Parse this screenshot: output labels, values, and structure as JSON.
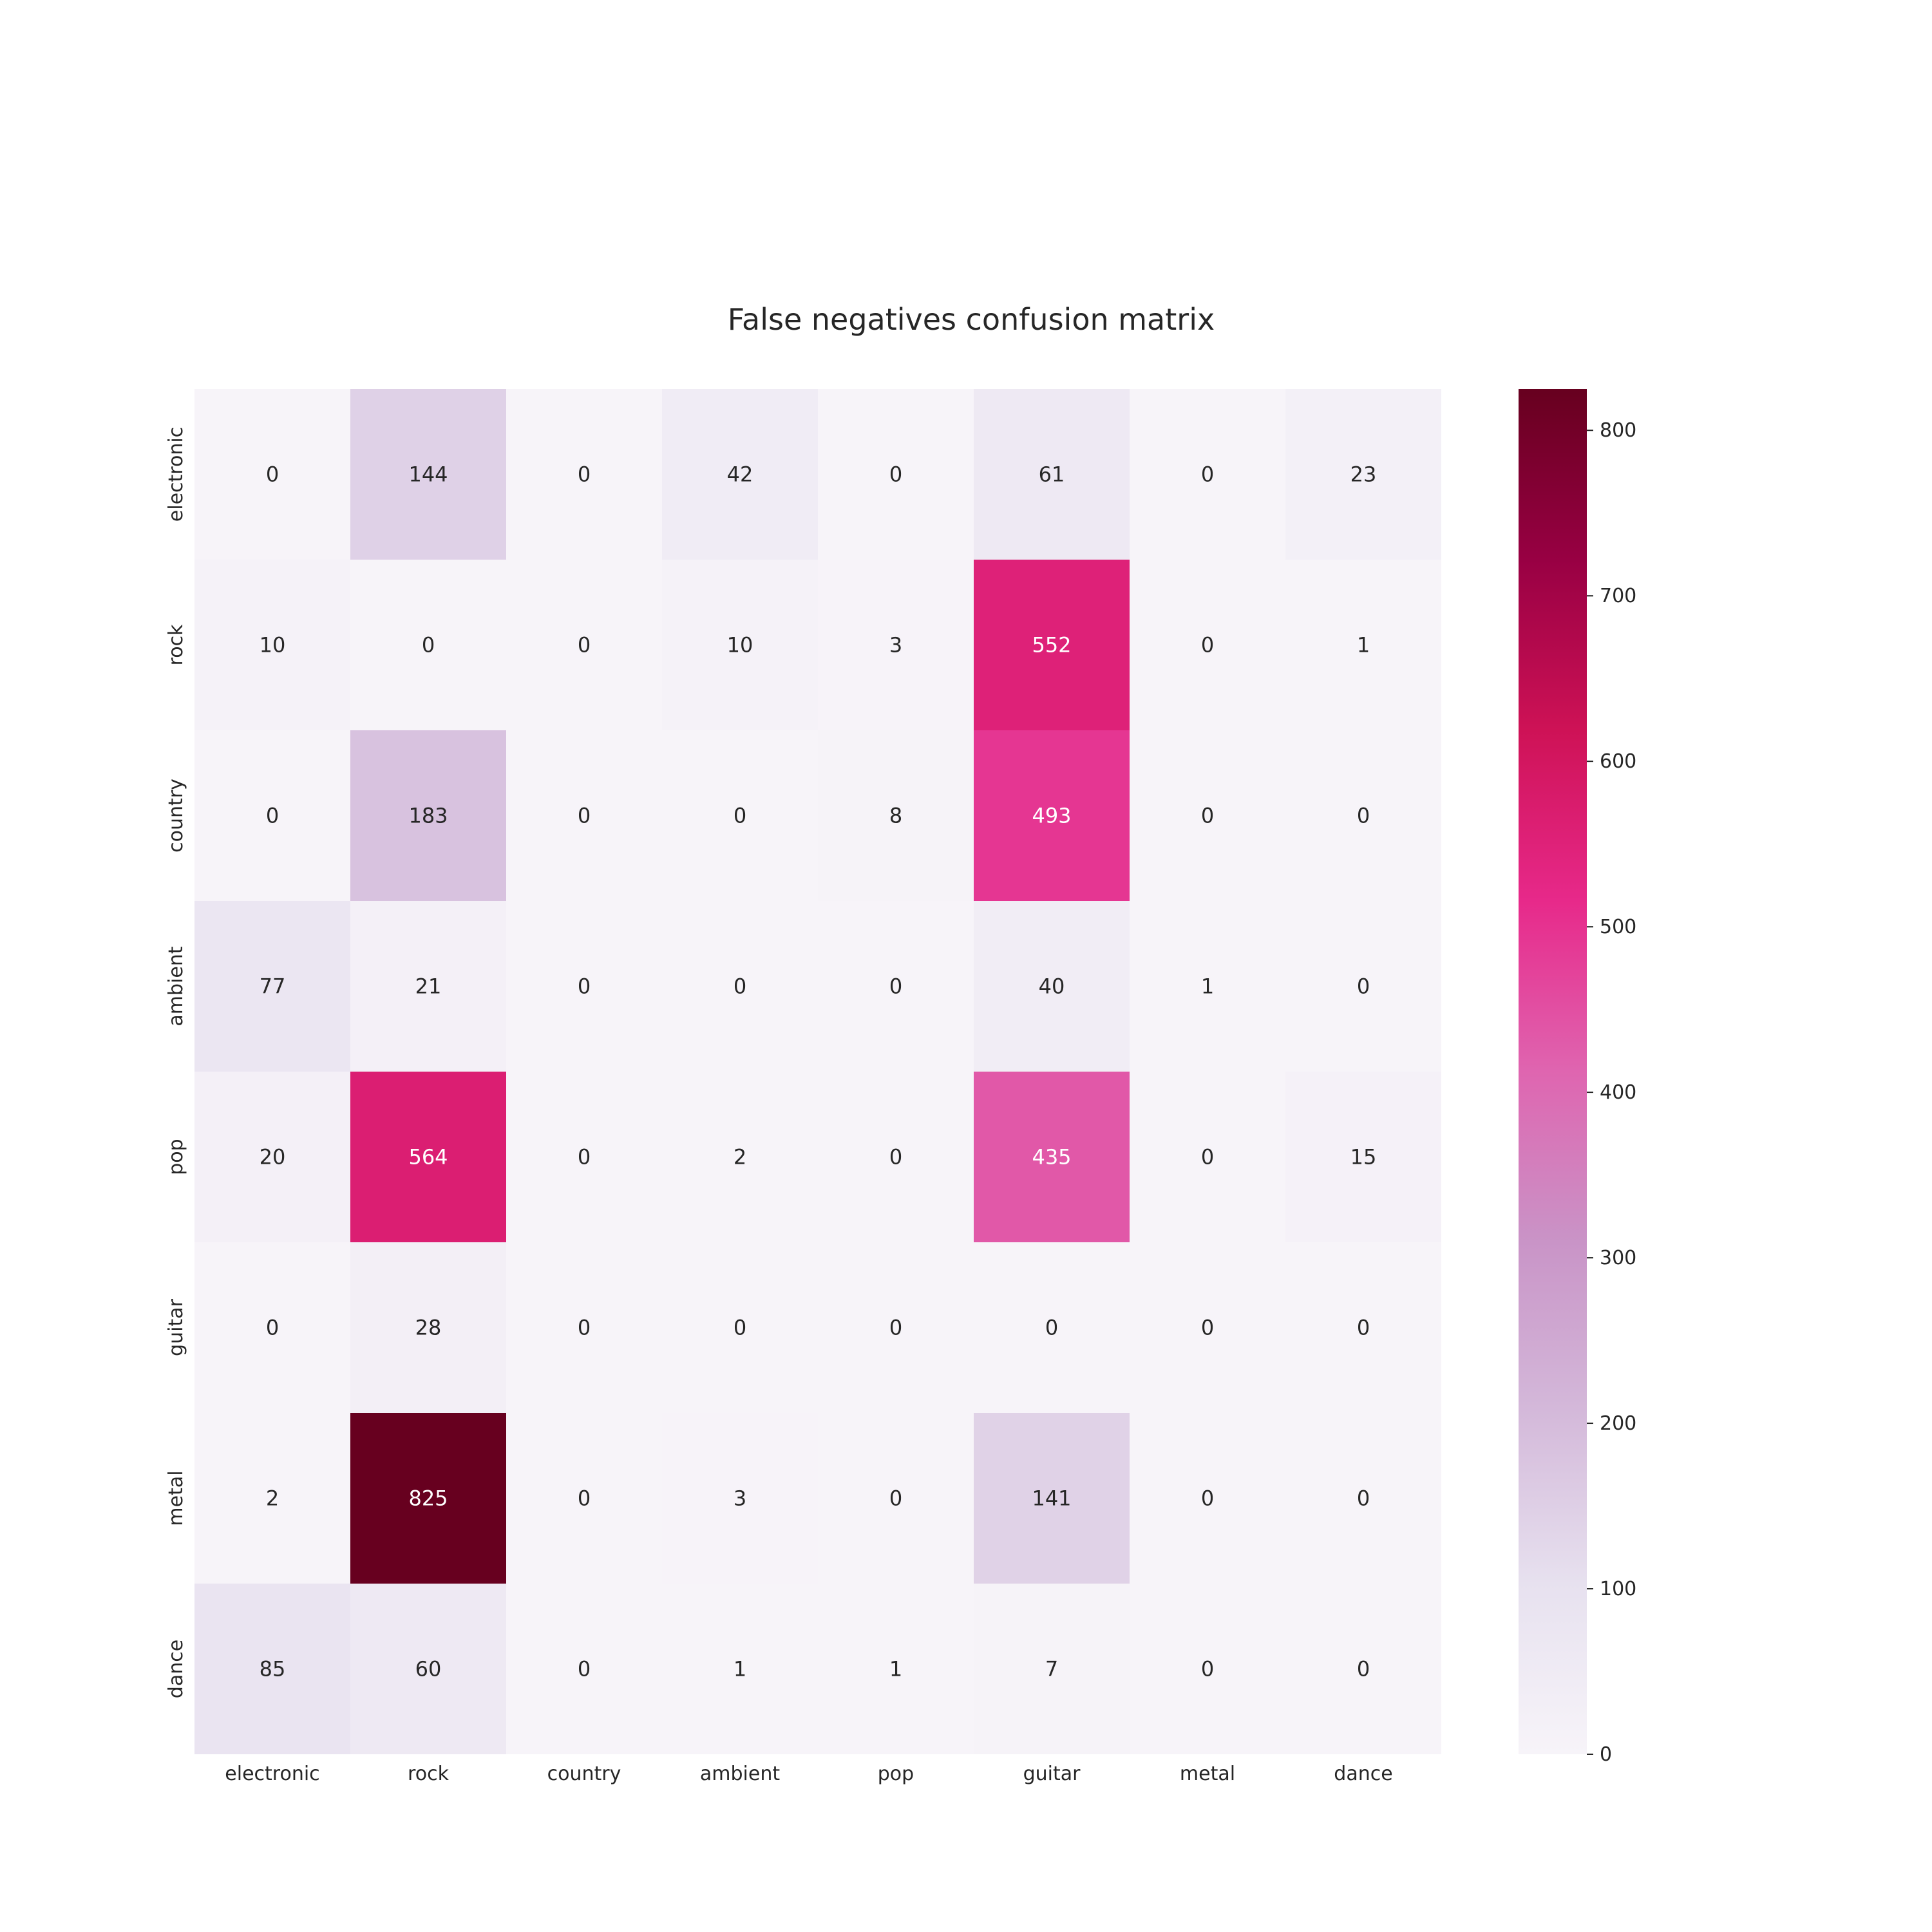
{
  "chart_data": {
    "type": "heatmap",
    "title": "False negatives confusion matrix",
    "xlabel": "",
    "ylabel": "",
    "x_categories": [
      "electronic",
      "rock",
      "country",
      "ambient",
      "pop",
      "guitar",
      "metal",
      "dance"
    ],
    "y_categories": [
      "electronic",
      "rock",
      "country",
      "ambient",
      "pop",
      "guitar",
      "metal",
      "dance"
    ],
    "values": [
      [
        0,
        144,
        0,
        42,
        0,
        61,
        0,
        23
      ],
      [
        10,
        0,
        0,
        10,
        3,
        552,
        0,
        1
      ],
      [
        0,
        183,
        0,
        0,
        8,
        493,
        0,
        0
      ],
      [
        77,
        21,
        0,
        0,
        0,
        40,
        1,
        0
      ],
      [
        20,
        564,
        0,
        2,
        0,
        435,
        0,
        15
      ],
      [
        0,
        28,
        0,
        0,
        0,
        0,
        0,
        0
      ],
      [
        2,
        825,
        0,
        3,
        0,
        141,
        0,
        0
      ],
      [
        85,
        60,
        0,
        1,
        1,
        7,
        0,
        0
      ]
    ],
    "colorbar": {
      "min": 0,
      "max": 825,
      "ticks": [
        0,
        100,
        200,
        300,
        400,
        500,
        600,
        700,
        800
      ],
      "colormap": "PuRd"
    },
    "grid": false
  }
}
